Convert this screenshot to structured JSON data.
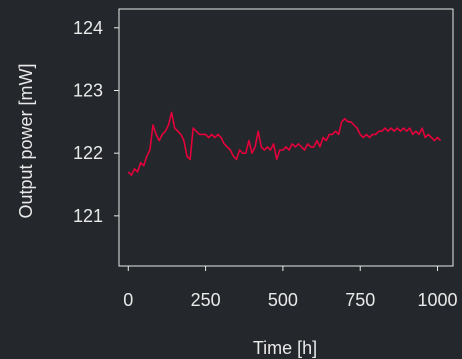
{
  "colors": {
    "background": "#24272b",
    "axis": "#e9e9e9",
    "line": "#e3003b"
  },
  "chart_data": {
    "type": "line",
    "title": "",
    "xlabel": "Time [h]",
    "ylabel": "Output power  [mW]",
    "xlim": [
      -30,
      1050
    ],
    "ylim": [
      120.2,
      124.3
    ],
    "xticks": [
      0,
      250,
      500,
      750,
      1000
    ],
    "xtick_labels": [
      "0",
      "250",
      "500",
      "750",
      "1000"
    ],
    "yticks": [
      121,
      122,
      123,
      124
    ],
    "ytick_labels": [
      "121",
      "122",
      "123",
      "124"
    ],
    "grid": false,
    "series": [
      {
        "color": "#e3003b",
        "x": [
          0,
          10,
          20,
          30,
          40,
          50,
          60,
          70,
          80,
          90,
          100,
          110,
          120,
          130,
          140,
          150,
          160,
          170,
          180,
          190,
          200,
          210,
          220,
          230,
          240,
          250,
          260,
          270,
          280,
          290,
          300,
          310,
          320,
          330,
          340,
          350,
          360,
          370,
          380,
          390,
          400,
          410,
          420,
          430,
          440,
          450,
          460,
          470,
          480,
          490,
          500,
          510,
          520,
          530,
          540,
          550,
          560,
          570,
          580,
          590,
          600,
          610,
          620,
          630,
          640,
          650,
          660,
          670,
          680,
          690,
          700,
          710,
          720,
          730,
          740,
          750,
          760,
          770,
          780,
          790,
          800,
          810,
          820,
          830,
          840,
          850,
          860,
          870,
          880,
          890,
          900,
          910,
          920,
          930,
          940,
          950,
          960,
          970,
          980,
          990,
          1000,
          1010
        ],
        "y": [
          121.7,
          121.65,
          121.75,
          121.7,
          121.85,
          121.8,
          121.95,
          122.05,
          122.45,
          122.3,
          122.2,
          122.3,
          122.35,
          122.45,
          122.65,
          122.4,
          122.35,
          122.3,
          122.2,
          121.95,
          121.9,
          122.4,
          122.35,
          122.3,
          122.3,
          122.3,
          122.25,
          122.3,
          122.25,
          122.3,
          122.25,
          122.15,
          122.1,
          122.05,
          121.95,
          121.9,
          122.05,
          122.0,
          122.0,
          122.2,
          122.0,
          122.1,
          122.35,
          122.1,
          122.05,
          122.1,
          122.05,
          122.15,
          121.9,
          122.05,
          122.05,
          122.1,
          122.05,
          122.15,
          122.1,
          122.15,
          122.1,
          122.05,
          122.15,
          122.1,
          122.1,
          122.2,
          122.1,
          122.25,
          122.2,
          122.3,
          122.3,
          122.35,
          122.3,
          122.5,
          122.55,
          122.5,
          122.5,
          122.45,
          122.4,
          122.3,
          122.25,
          122.3,
          122.25,
          122.3,
          122.3,
          122.35,
          122.35,
          122.4,
          122.35,
          122.4,
          122.35,
          122.4,
          122.35,
          122.4,
          122.35,
          122.4,
          122.3,
          122.35,
          122.3,
          122.4,
          122.25,
          122.3,
          122.25,
          122.2,
          122.25,
          122.2
        ]
      }
    ]
  }
}
